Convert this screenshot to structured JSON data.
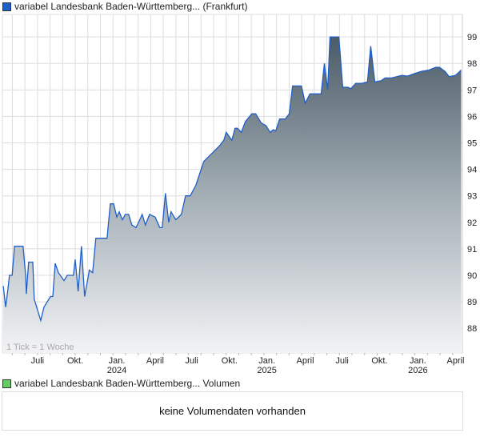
{
  "legend_price": "variabel Landesbank Baden-Württemberg... (Frankfurt)",
  "legend_volume": "variabel Landesbank Baden-Württemberg... Volumen",
  "tick_note": "1 Tick = 1 Woche",
  "volume_message": "keine Volumendaten vorhanden",
  "colors": {
    "line": "#1f5fc8",
    "fill_top": "#4b5b67",
    "fill_bottom": "#f2f3f5",
    "grid": "#dddddd",
    "price_legend": "#1f5fc8",
    "volume_legend": "#66cc66"
  },
  "chart_data": {
    "type": "area",
    "title": "variabel Landesbank Baden-Württemberg... (Frankfurt)",
    "xlabel": "",
    "ylabel": "",
    "x_unit": "weeks since start (mid-April 2023)",
    "xlim": [
      0,
      156
    ],
    "ylim": [
      87.07,
      99.85
    ],
    "y_ticks": [
      88,
      89,
      90,
      91,
      92,
      93,
      94,
      95,
      96,
      97,
      98,
      99
    ],
    "x_ticks": [
      {
        "w": 11.9,
        "label": "Juli",
        "year": ""
      },
      {
        "w": 24.7,
        "label": "Okt.",
        "year": ""
      },
      {
        "w": 38.8,
        "label": "Jan.",
        "year": "2024"
      },
      {
        "w": 51.8,
        "label": "April",
        "year": ""
      },
      {
        "w": 64.2,
        "label": "Juli",
        "year": ""
      },
      {
        "w": 77.0,
        "label": "Okt.",
        "year": ""
      },
      {
        "w": 89.7,
        "label": "Jan.",
        "year": "2025"
      },
      {
        "w": 102.7,
        "label": "April",
        "year": ""
      },
      {
        "w": 115.2,
        "label": "Juli",
        "year": ""
      },
      {
        "w": 127.9,
        "label": "Okt.",
        "year": ""
      },
      {
        "w": 140.9,
        "label": "Jan.",
        "year": "2026"
      },
      {
        "w": 153.7,
        "label": "April",
        "year": ""
      }
    ],
    "grid": true,
    "points": [
      [
        0.3,
        89.6
      ],
      [
        1.1,
        88.8
      ],
      [
        1.9,
        89.5
      ],
      [
        2.4,
        90.0
      ],
      [
        3.3,
        90.0
      ],
      [
        4.1,
        91.1
      ],
      [
        7.0,
        91.1
      ],
      [
        7.9,
        90.0
      ],
      [
        8.1,
        89.3
      ],
      [
        8.9,
        90.5
      ],
      [
        10.3,
        90.5
      ],
      [
        10.8,
        89.1
      ],
      [
        13.0,
        88.3
      ],
      [
        14.1,
        88.8
      ],
      [
        16.3,
        89.2
      ],
      [
        17.1,
        89.2
      ],
      [
        17.9,
        90.45
      ],
      [
        19.0,
        90.1
      ],
      [
        20.9,
        89.8
      ],
      [
        22.0,
        90.0
      ],
      [
        24.1,
        90.0
      ],
      [
        24.7,
        90.6
      ],
      [
        25.7,
        89.4
      ],
      [
        26.8,
        91.1
      ],
      [
        27.9,
        89.2
      ],
      [
        29.5,
        90.2
      ],
      [
        30.6,
        90.1
      ],
      [
        31.7,
        91.4
      ],
      [
        35.5,
        91.4
      ],
      [
        36.6,
        92.7
      ],
      [
        37.7,
        92.7
      ],
      [
        38.8,
        92.2
      ],
      [
        39.6,
        92.4
      ],
      [
        40.7,
        92.1
      ],
      [
        41.7,
        92.3
      ],
      [
        42.8,
        92.3
      ],
      [
        43.9,
        91.9
      ],
      [
        45.3,
        91.8
      ],
      [
        46.6,
        92.1
      ],
      [
        47.4,
        92.3
      ],
      [
        48.5,
        91.9
      ],
      [
        49.9,
        92.3
      ],
      [
        51.8,
        92.2
      ],
      [
        53.4,
        91.8
      ],
      [
        54.2,
        91.8
      ],
      [
        55.3,
        93.1
      ],
      [
        56.4,
        92.0
      ],
      [
        57.2,
        92.4
      ],
      [
        58.8,
        92.1
      ],
      [
        60.7,
        92.3
      ],
      [
        62.1,
        93.0
      ],
      [
        63.7,
        93.0
      ],
      [
        65.6,
        93.4
      ],
      [
        68.3,
        94.3
      ],
      [
        71.0,
        94.6
      ],
      [
        73.7,
        94.9
      ],
      [
        75.1,
        95.1
      ],
      [
        75.9,
        95.4
      ],
      [
        77.8,
        95.1
      ],
      [
        78.9,
        95.55
      ],
      [
        79.7,
        95.55
      ],
      [
        81.0,
        95.4
      ],
      [
        82.4,
        95.8
      ],
      [
        84.6,
        96.1
      ],
      [
        85.9,
        96.1
      ],
      [
        87.8,
        95.75
      ],
      [
        89.4,
        95.65
      ],
      [
        90.8,
        95.4
      ],
      [
        91.9,
        95.5
      ],
      [
        92.7,
        95.45
      ],
      [
        94.0,
        95.9
      ],
      [
        95.9,
        95.9
      ],
      [
        97.3,
        96.1
      ],
      [
        98.4,
        97.15
      ],
      [
        101.4,
        97.15
      ],
      [
        102.7,
        96.5
      ],
      [
        104.3,
        96.85
      ],
      [
        108.1,
        96.85
      ],
      [
        109.2,
        98.0
      ],
      [
        110.3,
        97.0
      ],
      [
        111.1,
        99.0
      ],
      [
        114.1,
        99.0
      ],
      [
        115.4,
        97.1
      ],
      [
        117.1,
        97.1
      ],
      [
        118.2,
        97.05
      ],
      [
        119.8,
        97.25
      ],
      [
        121.9,
        97.25
      ],
      [
        123.8,
        97.3
      ],
      [
        124.9,
        98.65
      ],
      [
        126.3,
        97.3
      ],
      [
        128.5,
        97.35
      ],
      [
        129.8,
        97.45
      ],
      [
        132.0,
        97.45
      ],
      [
        135.5,
        97.55
      ],
      [
        137.4,
        97.52
      ],
      [
        139.3,
        97.6
      ],
      [
        142.0,
        97.7
      ],
      [
        144.7,
        97.75
      ],
      [
        146.9,
        97.85
      ],
      [
        148.2,
        97.85
      ],
      [
        150.1,
        97.7
      ],
      [
        151.5,
        97.5
      ],
      [
        153.7,
        97.55
      ],
      [
        155.6,
        97.75
      ]
    ]
  }
}
